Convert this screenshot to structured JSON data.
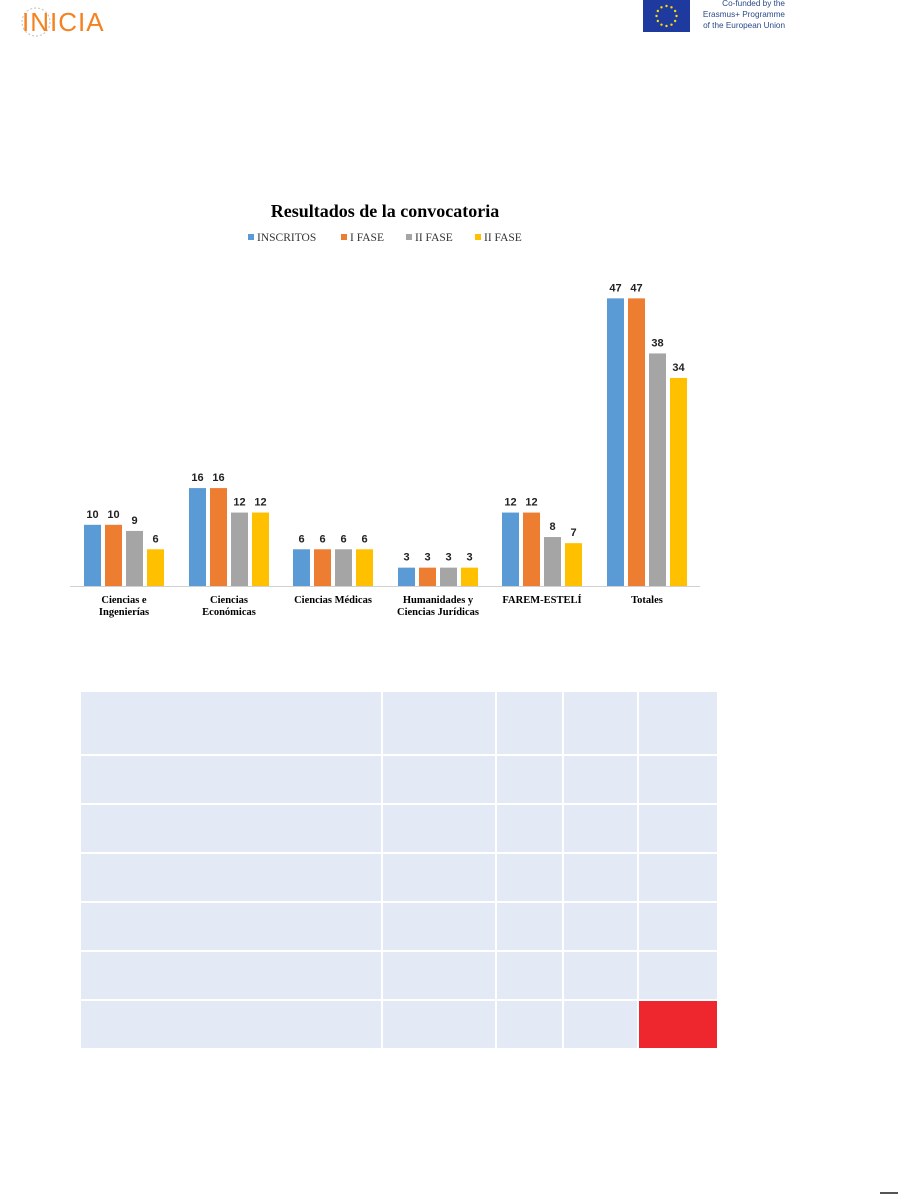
{
  "header": {
    "logo_text": "INICIA",
    "eu_lines": [
      "Co-funded by the",
      "Erasmus+ Programme",
      "of the European Union"
    ]
  },
  "colors": {
    "inscritos": "#5b9bd5",
    "fase1": "#ed7d31",
    "fase2": "#a5a5a5",
    "fase3": "#ffc000",
    "logo": "#f58220",
    "table_cell": "#e3e9f5",
    "table_highlight": "#ee262e"
  },
  "chart_data": {
    "type": "bar",
    "title": "Resultados de la convocatoria",
    "xlabel": "",
    "ylabel": "",
    "ylim": [
      0,
      50
    ],
    "grid": false,
    "legend_position": "top",
    "categories": [
      [
        "Ciencias e",
        "Ingenierías"
      ],
      [
        "Ciencias",
        "Económicas"
      ],
      [
        "Ciencias Médicas"
      ],
      [
        "Humanidades y",
        "Ciencias Jurídicas"
      ],
      [
        "FAREM-ESTELÍ"
      ],
      [
        "Totales"
      ]
    ],
    "series": [
      {
        "name": "INSCRITOS",
        "color": "#5b9bd5",
        "values": [
          10,
          16,
          6,
          3,
          12,
          47
        ]
      },
      {
        "name": "I FASE",
        "color": "#ed7d31",
        "values": [
          10,
          16,
          6,
          3,
          12,
          47
        ]
      },
      {
        "name": "II FASE",
        "color": "#a5a5a5",
        "values": [
          9,
          12,
          6,
          3,
          8,
          38
        ]
      },
      {
        "name": "II FASE",
        "color": "#ffc000",
        "values": [
          6,
          12,
          6,
          3,
          7,
          34
        ]
      }
    ]
  },
  "table": {
    "rows": [
      [
        "",
        "",
        "",
        "",
        ""
      ],
      [
        "",
        "",
        "",
        "",
        ""
      ],
      [
        "",
        "",
        "",
        "",
        ""
      ],
      [
        "",
        "",
        "",
        "",
        ""
      ],
      [
        "",
        "",
        "",
        "",
        ""
      ],
      [
        "",
        "",
        "",
        "",
        ""
      ],
      [
        "",
        "",
        "",
        "",
        ""
      ]
    ],
    "highlight_cell": "last-row-last-column"
  }
}
